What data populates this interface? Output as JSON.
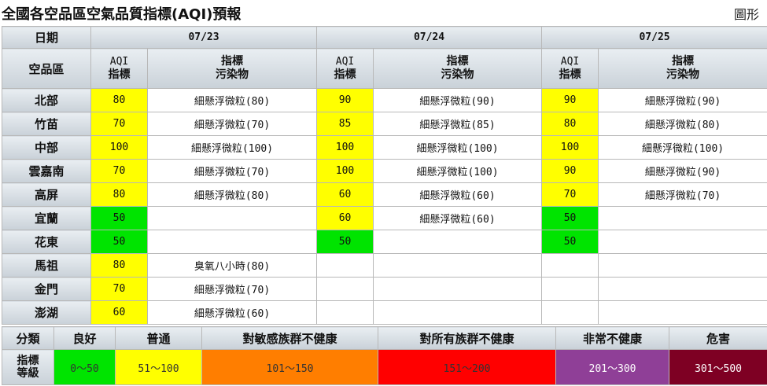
{
  "page": {
    "title": "全國各空品區空氣品質指標(AQI)預報",
    "graph_link": "圖形"
  },
  "header": {
    "date_label": "日期",
    "region_label": "空品區",
    "aqi_label_1": "AQI",
    "aqi_label_2": "指標",
    "pollutant_label_1": "指標",
    "pollutant_label_2": "污染物",
    "dates": [
      "07/23",
      "07/24",
      "07/25"
    ]
  },
  "rows": [
    {
      "region": "北部",
      "d": [
        {
          "aqi": "80",
          "pol": "細懸浮微粒(80)",
          "color": "#ffff00"
        },
        {
          "aqi": "90",
          "pol": "細懸浮微粒(90)",
          "color": "#ffff00"
        },
        {
          "aqi": "90",
          "pol": "細懸浮微粒(90)",
          "color": "#ffff00"
        }
      ]
    },
    {
      "region": "竹苗",
      "d": [
        {
          "aqi": "70",
          "pol": "細懸浮微粒(70)",
          "color": "#ffff00"
        },
        {
          "aqi": "85",
          "pol": "細懸浮微粒(85)",
          "color": "#ffff00"
        },
        {
          "aqi": "80",
          "pol": "細懸浮微粒(80)",
          "color": "#ffff00"
        }
      ]
    },
    {
      "region": "中部",
      "d": [
        {
          "aqi": "100",
          "pol": "細懸浮微粒(100)",
          "color": "#ffff00"
        },
        {
          "aqi": "100",
          "pol": "細懸浮微粒(100)",
          "color": "#ffff00"
        },
        {
          "aqi": "100",
          "pol": "細懸浮微粒(100)",
          "color": "#ffff00"
        }
      ]
    },
    {
      "region": "雲嘉南",
      "d": [
        {
          "aqi": "70",
          "pol": "細懸浮微粒(70)",
          "color": "#ffff00"
        },
        {
          "aqi": "100",
          "pol": "細懸浮微粒(100)",
          "color": "#ffff00"
        },
        {
          "aqi": "90",
          "pol": "細懸浮微粒(90)",
          "color": "#ffff00"
        }
      ]
    },
    {
      "region": "高屏",
      "d": [
        {
          "aqi": "80",
          "pol": "細懸浮微粒(80)",
          "color": "#ffff00"
        },
        {
          "aqi": "60",
          "pol": "細懸浮微粒(60)",
          "color": "#ffff00"
        },
        {
          "aqi": "70",
          "pol": "細懸浮微粒(70)",
          "color": "#ffff00"
        }
      ]
    },
    {
      "region": "宜蘭",
      "d": [
        {
          "aqi": "50",
          "pol": "",
          "color": "#00e400"
        },
        {
          "aqi": "60",
          "pol": "細懸浮微粒(60)",
          "color": "#ffff00"
        },
        {
          "aqi": "50",
          "pol": "",
          "color": "#00e400"
        }
      ]
    },
    {
      "region": "花東",
      "d": [
        {
          "aqi": "50",
          "pol": "",
          "color": "#00e400"
        },
        {
          "aqi": "50",
          "pol": "",
          "color": "#00e400"
        },
        {
          "aqi": "50",
          "pol": "",
          "color": "#00e400"
        }
      ]
    },
    {
      "region": "馬祖",
      "d": [
        {
          "aqi": "80",
          "pol": "臭氧八小時(80)",
          "color": "#ffff00"
        },
        {
          "aqi": "",
          "pol": "",
          "color": "#ffffff"
        },
        {
          "aqi": "",
          "pol": "",
          "color": "#ffffff"
        }
      ]
    },
    {
      "region": "金門",
      "d": [
        {
          "aqi": "70",
          "pol": "細懸浮微粒(70)",
          "color": "#ffff00"
        },
        {
          "aqi": "",
          "pol": "",
          "color": "#ffffff"
        },
        {
          "aqi": "",
          "pol": "",
          "color": "#ffffff"
        }
      ]
    },
    {
      "region": "澎湖",
      "d": [
        {
          "aqi": "60",
          "pol": "細懸浮微粒(60)",
          "color": "#ffff00"
        },
        {
          "aqi": "",
          "pol": "",
          "color": "#ffffff"
        },
        {
          "aqi": "",
          "pol": "",
          "color": "#ffffff"
        }
      ]
    }
  ],
  "legend": {
    "category_label": "分類",
    "index_label_1": "指標",
    "index_label_2": "等級",
    "levels": [
      {
        "name": "良好",
        "range": "0～50",
        "color": "#00e400",
        "text_color": "#333333"
      },
      {
        "name": "普通",
        "range": "51～100",
        "color": "#ffff00",
        "text_color": "#333333"
      },
      {
        "name": "對敏感族群不健康",
        "range": "101～150",
        "color": "#ff7e00",
        "text_color": "#333333"
      },
      {
        "name": "對所有族群不健康",
        "range": "151～200",
        "color": "#ff0000",
        "text_color": "#333333"
      },
      {
        "name": "非常不健康",
        "range": "201～300",
        "color": "#8f3f97",
        "text_color": "#ffffff"
      },
      {
        "name": "危害",
        "range": "301～500",
        "color": "#7e0023",
        "text_color": "#ffffff"
      }
    ]
  }
}
